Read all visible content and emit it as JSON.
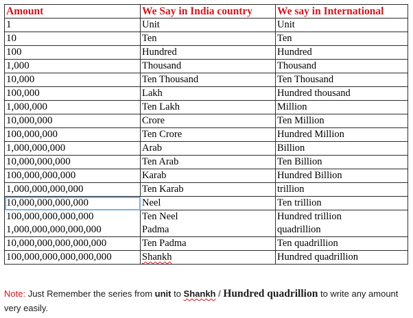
{
  "table": {
    "headers": [
      "Amount",
      "We Say in India country",
      "We say in International"
    ],
    "rows": [
      [
        "1",
        "Unit",
        "Unit"
      ],
      [
        "10",
        "Ten",
        "Ten"
      ],
      [
        "100",
        "Hundred",
        "Hundred"
      ],
      [
        "1,000",
        "Thousand",
        "Thousand"
      ],
      [
        "10,000",
        "Ten Thousand",
        "Ten Thousand"
      ],
      [
        "100,000",
        "Lakh",
        "Hundred thousand"
      ],
      [
        "1,000,000",
        "Ten Lakh",
        "Million"
      ],
      [
        "10,000,000",
        "Crore",
        "Ten Million"
      ],
      [
        "100,000,000",
        "Ten Crore",
        "Hundred Million"
      ],
      [
        "1,000,000,000",
        "Arab",
        "Billion"
      ],
      [
        "10,000,000,000",
        "Ten Arab",
        "Ten Billion"
      ],
      [
        "100,000,000,000",
        "Karab",
        "Hundred Billion"
      ],
      [
        "1,000,000,000,000",
        "Ten Karab",
        "trillion"
      ],
      [
        "10,000,000,000,000",
        "Neel",
        "Ten trillion"
      ]
    ],
    "merged_block": {
      "amounts": [
        "100,000,000,000,000",
        "1,000,000,000,000,000"
      ],
      "india": [
        "Ten Neel",
        "Padma"
      ],
      "international": [
        "Hundred trillion",
        "quadrillion"
      ]
    },
    "tail_rows": [
      [
        "10,000,000,000,000,000",
        "Ten Padma",
        "Ten quadrillion"
      ],
      [
        "100,000,000,000,000,000",
        "Shankh",
        "Hundred quadrillion"
      ]
    ]
  },
  "note": {
    "label": "Note:",
    "text1": " Just Remember the series from ",
    "unit": "unit",
    "text2": " to ",
    "shankh": "Shankh",
    "text3": " / ",
    "hq": "Hundred quadrillion",
    "text4": " to write any amount very easily."
  },
  "colors": {
    "header_text": "#d8121b",
    "border": "#2b2b2b",
    "selection_outline": "#7ab0e6"
  }
}
